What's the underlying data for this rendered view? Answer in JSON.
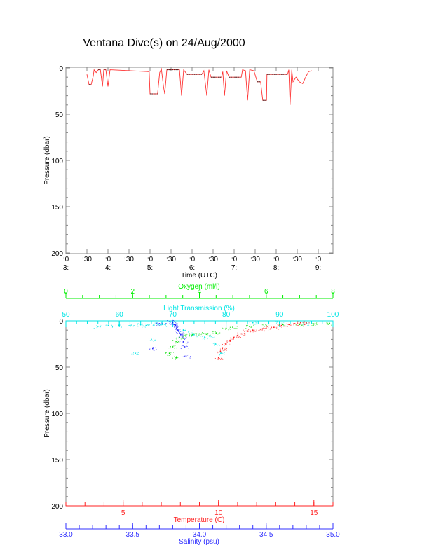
{
  "chart_data": [
    {
      "type": "line",
      "title": "Ventana Dive(s) on 24/Aug/2000",
      "xlabel": "Time (UTC)",
      "ylabel": "Pressure (dbar)",
      "xlim": [
        3.0,
        9.35
      ],
      "ylim": [
        200,
        0
      ],
      "x_ticks": [
        {
          "value": 3.0,
          "line1": ":0",
          "line2": "3:"
        },
        {
          "value": 3.5,
          "line1": ":30",
          "line2": ""
        },
        {
          "value": 4.0,
          "line1": ":0",
          "line2": "4:"
        },
        {
          "value": 4.5,
          "line1": ":30",
          "line2": ""
        },
        {
          "value": 5.0,
          "line1": ":0",
          "line2": "5:"
        },
        {
          "value": 5.5,
          "line1": ":30",
          "line2": ""
        },
        {
          "value": 6.0,
          "line1": ":0",
          "line2": "6:"
        },
        {
          "value": 6.5,
          "line1": ":30",
          "line2": ""
        },
        {
          "value": 7.0,
          "line1": ":0",
          "line2": "7:"
        },
        {
          "value": 7.5,
          "line1": ":30",
          "line2": ""
        },
        {
          "value": 8.0,
          "line1": ":0",
          "line2": "8:"
        },
        {
          "value": 8.5,
          "line1": ":30",
          "line2": ""
        },
        {
          "value": 9.0,
          "line1": ":0",
          "line2": "9:"
        }
      ],
      "y_ticks": [
        "0",
        "50",
        "100",
        "150",
        "200"
      ],
      "series": [
        {
          "name": "Pressure",
          "color": "#ff3030",
          "x": [
            3.5,
            3.55,
            3.6,
            3.65,
            3.67,
            3.72,
            3.77,
            3.82,
            3.87,
            3.9,
            3.95,
            4.0,
            4.05,
            4.98,
            5.0,
            5.18,
            5.23,
            5.27,
            5.32,
            5.35,
            5.4,
            5.7,
            5.75,
            5.8,
            5.88,
            6.23,
            6.28,
            6.35,
            6.4,
            6.45,
            6.7,
            6.73,
            6.77,
            6.82,
            6.88,
            7.17,
            7.2,
            7.27,
            7.32,
            7.37,
            7.47,
            7.55,
            7.63,
            7.68,
            7.77,
            7.78,
            8.27,
            8.3,
            8.33,
            8.37,
            8.4,
            8.47,
            8.55,
            8.63,
            8.7,
            8.77,
            8.85
          ],
          "y": [
            7,
            18,
            18,
            9,
            2,
            5,
            2,
            2,
            20,
            2,
            2,
            20,
            2,
            4,
            28,
            28,
            5,
            1,
            20,
            28,
            2,
            2,
            30,
            2,
            7,
            7,
            3,
            30,
            2,
            10,
            10,
            4,
            30,
            3,
            10,
            10,
            2,
            3,
            35,
            2,
            3,
            15,
            15,
            35,
            35,
            7,
            7,
            2,
            40,
            2,
            15,
            10,
            15,
            17,
            10,
            4,
            3
          ]
        }
      ]
    },
    {
      "type": "scatter",
      "ylabel": "Pressure (dbar)",
      "ylim": [
        200,
        0
      ],
      "y_ticks": [
        "0",
        "50",
        "100",
        "150",
        "200"
      ],
      "axes": {
        "oxygen": {
          "label": "Oxygen (ml/l)",
          "range": [
            0,
            8
          ],
          "ticks": [
            "0",
            "2",
            "4",
            "6",
            "8"
          ],
          "color": "#00ee00",
          "position": "top"
        },
        "light": {
          "label": "Light Transmission (%)",
          "range": [
            50,
            100
          ],
          "ticks": [
            "50",
            "60",
            "70",
            "80",
            "90",
            "100"
          ],
          "color": "#00e5e5",
          "position": "top"
        },
        "temperature": {
          "label": "Temperature (C)",
          "range": [
            2,
            16
          ],
          "ticks": [
            "5",
            "10",
            "15"
          ],
          "color": "#ff2020",
          "position": "bottom"
        },
        "salinity": {
          "label": "Salinity (psu)",
          "range": [
            33.0,
            35.0
          ],
          "ticks": [
            "33.0",
            "33.5",
            "34.0",
            "34.5",
            "35.0"
          ],
          "color": "#3030ff",
          "position": "bottom"
        }
      },
      "series": [
        {
          "name": "Light Transmission",
          "axis": "light",
          "color": "#00e5e5",
          "x": [
            56,
            58,
            60,
            62,
            64,
            65,
            67,
            68,
            70,
            72,
            73,
            74,
            76,
            77,
            78,
            79,
            66,
            63,
            85,
            90,
            95
          ],
          "y": [
            6,
            5,
            5,
            5,
            4,
            5,
            3,
            4,
            2,
            10,
            12,
            15,
            18,
            16,
            25,
            35,
            20,
            35,
            2,
            2,
            3
          ]
        },
        {
          "name": "Salinity",
          "axis": "salinity",
          "color": "#2020ff",
          "x": [
            33.78,
            33.8,
            33.81,
            33.82,
            33.83,
            33.84,
            33.85,
            33.86,
            33.87,
            33.88,
            33.89,
            33.9,
            33.7,
            33.65
          ],
          "y": [
            1,
            2,
            4,
            5,
            8,
            10,
            13,
            15,
            18,
            22,
            28,
            38,
            3,
            30
          ]
        },
        {
          "name": "Oxygen",
          "axis": "oxygen",
          "color": "#00dd00",
          "x": [
            7.9,
            7.4,
            7.0,
            6.5,
            6.0,
            5.5,
            5.0,
            4.8,
            4.5,
            4.2,
            4.0,
            3.8,
            3.6,
            3.4,
            3.3,
            3.2,
            3.1,
            3.3
          ],
          "y": [
            3,
            3,
            4,
            4,
            5,
            6,
            7,
            8,
            13,
            14,
            14,
            15,
            15,
            18,
            22,
            28,
            35,
            40
          ]
        },
        {
          "name": "Temperature",
          "axis": "temperature",
          "color": "#ff2020",
          "x": [
            10.0,
            10.1,
            10.2,
            10.4,
            10.6,
            10.8,
            11.0,
            11.2,
            11.5,
            11.8,
            12.2,
            12.5,
            12.9,
            13.3,
            13.7,
            14.0,
            14.3,
            14.6
          ],
          "y": [
            40,
            33,
            30,
            25,
            21,
            18,
            16,
            14,
            11,
            10,
            9,
            8,
            7,
            5,
            4,
            3,
            2,
            2
          ]
        }
      ]
    }
  ]
}
